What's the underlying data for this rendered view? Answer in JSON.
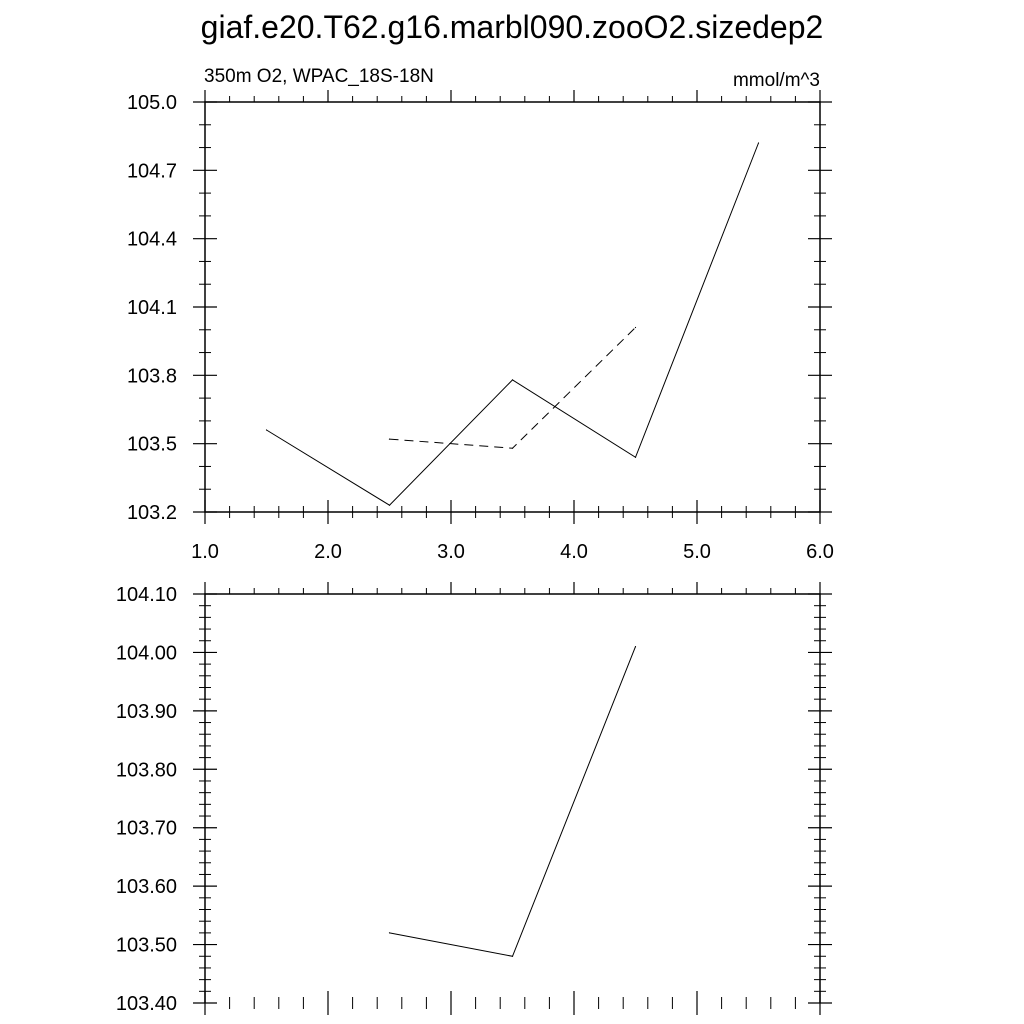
{
  "title": "giaf.e20.T62.g16.marbl090.zooO2.sizedep2",
  "chart_data": [
    {
      "type": "line",
      "subtitle_left": "350m O2, WPAC_18S-18N",
      "subtitle_right": "mmol/m^3",
      "xlim": [
        1.0,
        6.0
      ],
      "ylim": [
        103.2,
        105.0
      ],
      "x_ticks": [
        "1.0",
        "2.0",
        "3.0",
        "4.0",
        "5.0",
        "6.0"
      ],
      "y_ticks": [
        "103.2",
        "103.5",
        "103.8",
        "104.1",
        "104.4",
        "104.7",
        "105.0"
      ],
      "grid": false,
      "series": [
        {
          "style": "solid",
          "x": [
            1.5,
            2.5,
            3.5,
            4.5,
            5.5
          ],
          "y": [
            103.56,
            103.23,
            103.78,
            103.44,
            104.82
          ]
        },
        {
          "style": "dashed",
          "x": [
            2.5,
            3.5,
            4.5
          ],
          "y": [
            103.52,
            103.48,
            104.01
          ]
        }
      ]
    },
    {
      "type": "line",
      "xlim": [
        1.0,
        6.0
      ],
      "ylim": [
        103.4,
        104.1
      ],
      "y_ticks": [
        "103.40",
        "103.50",
        "103.60",
        "103.70",
        "103.80",
        "103.90",
        "104.00",
        "104.10"
      ],
      "grid": false,
      "series": [
        {
          "style": "solid",
          "x": [
            2.5,
            3.5,
            4.5
          ],
          "y": [
            103.52,
            103.48,
            104.01
          ]
        }
      ]
    }
  ]
}
